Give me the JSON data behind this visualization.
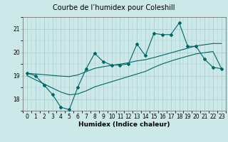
{
  "title": "Courbe de l’humidex pour Coleshill",
  "xlabel": "Humidex (Indice chaleur)",
  "bg_color": "#cce8e8",
  "line_color": "#006666",
  "grid_color": "#aad0d0",
  "x_data": [
    0,
    1,
    2,
    3,
    4,
    5,
    6,
    7,
    8,
    9,
    10,
    11,
    12,
    13,
    14,
    15,
    16,
    17,
    18,
    19,
    20,
    21,
    22,
    23
  ],
  "y_main": [
    19.1,
    19.0,
    18.6,
    18.2,
    17.65,
    17.55,
    18.5,
    19.3,
    19.95,
    19.6,
    19.45,
    19.45,
    19.5,
    20.35,
    19.85,
    20.8,
    20.75,
    20.75,
    21.25,
    20.25,
    20.25,
    19.7,
    19.35,
    19.3
  ],
  "y_upper": [
    19.1,
    19.07,
    19.04,
    19.01,
    18.98,
    18.96,
    19.03,
    19.17,
    19.31,
    19.38,
    19.44,
    19.49,
    19.55,
    19.63,
    19.68,
    19.77,
    19.87,
    19.97,
    20.07,
    20.17,
    20.27,
    20.32,
    20.37,
    20.37
  ],
  "y_lower": [
    19.0,
    18.82,
    18.65,
    18.47,
    18.3,
    18.18,
    18.22,
    18.35,
    18.52,
    18.63,
    18.74,
    18.85,
    18.96,
    19.07,
    19.18,
    19.35,
    19.5,
    19.62,
    19.73,
    19.83,
    19.93,
    19.98,
    20.03,
    19.3
  ],
  "ylim": [
    17.5,
    21.5
  ],
  "xlim": [
    -0.5,
    23.5
  ],
  "yticks": [
    18,
    19,
    20,
    21
  ],
  "xticks": [
    0,
    1,
    2,
    3,
    4,
    5,
    6,
    7,
    8,
    9,
    10,
    11,
    12,
    13,
    14,
    15,
    16,
    17,
    18,
    19,
    20,
    21,
    22,
    23
  ],
  "title_fontsize": 7,
  "tick_fontsize": 5.5,
  "xlabel_fontsize": 6.5
}
